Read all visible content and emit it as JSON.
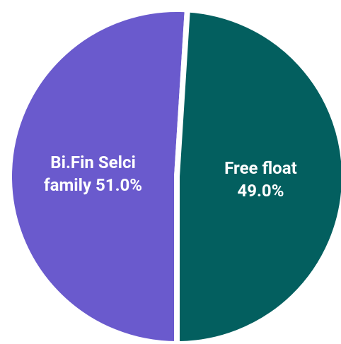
{
  "chart_data": {
    "type": "pie",
    "categories": [
      "Bi.Fin Selci family",
      "Free float"
    ],
    "values": [
      51,
      49
    ],
    "value_labels": [
      "51.0%",
      "49.0%"
    ],
    "colors": [
      "#6a5acd",
      "#035f5f"
    ]
  }
}
